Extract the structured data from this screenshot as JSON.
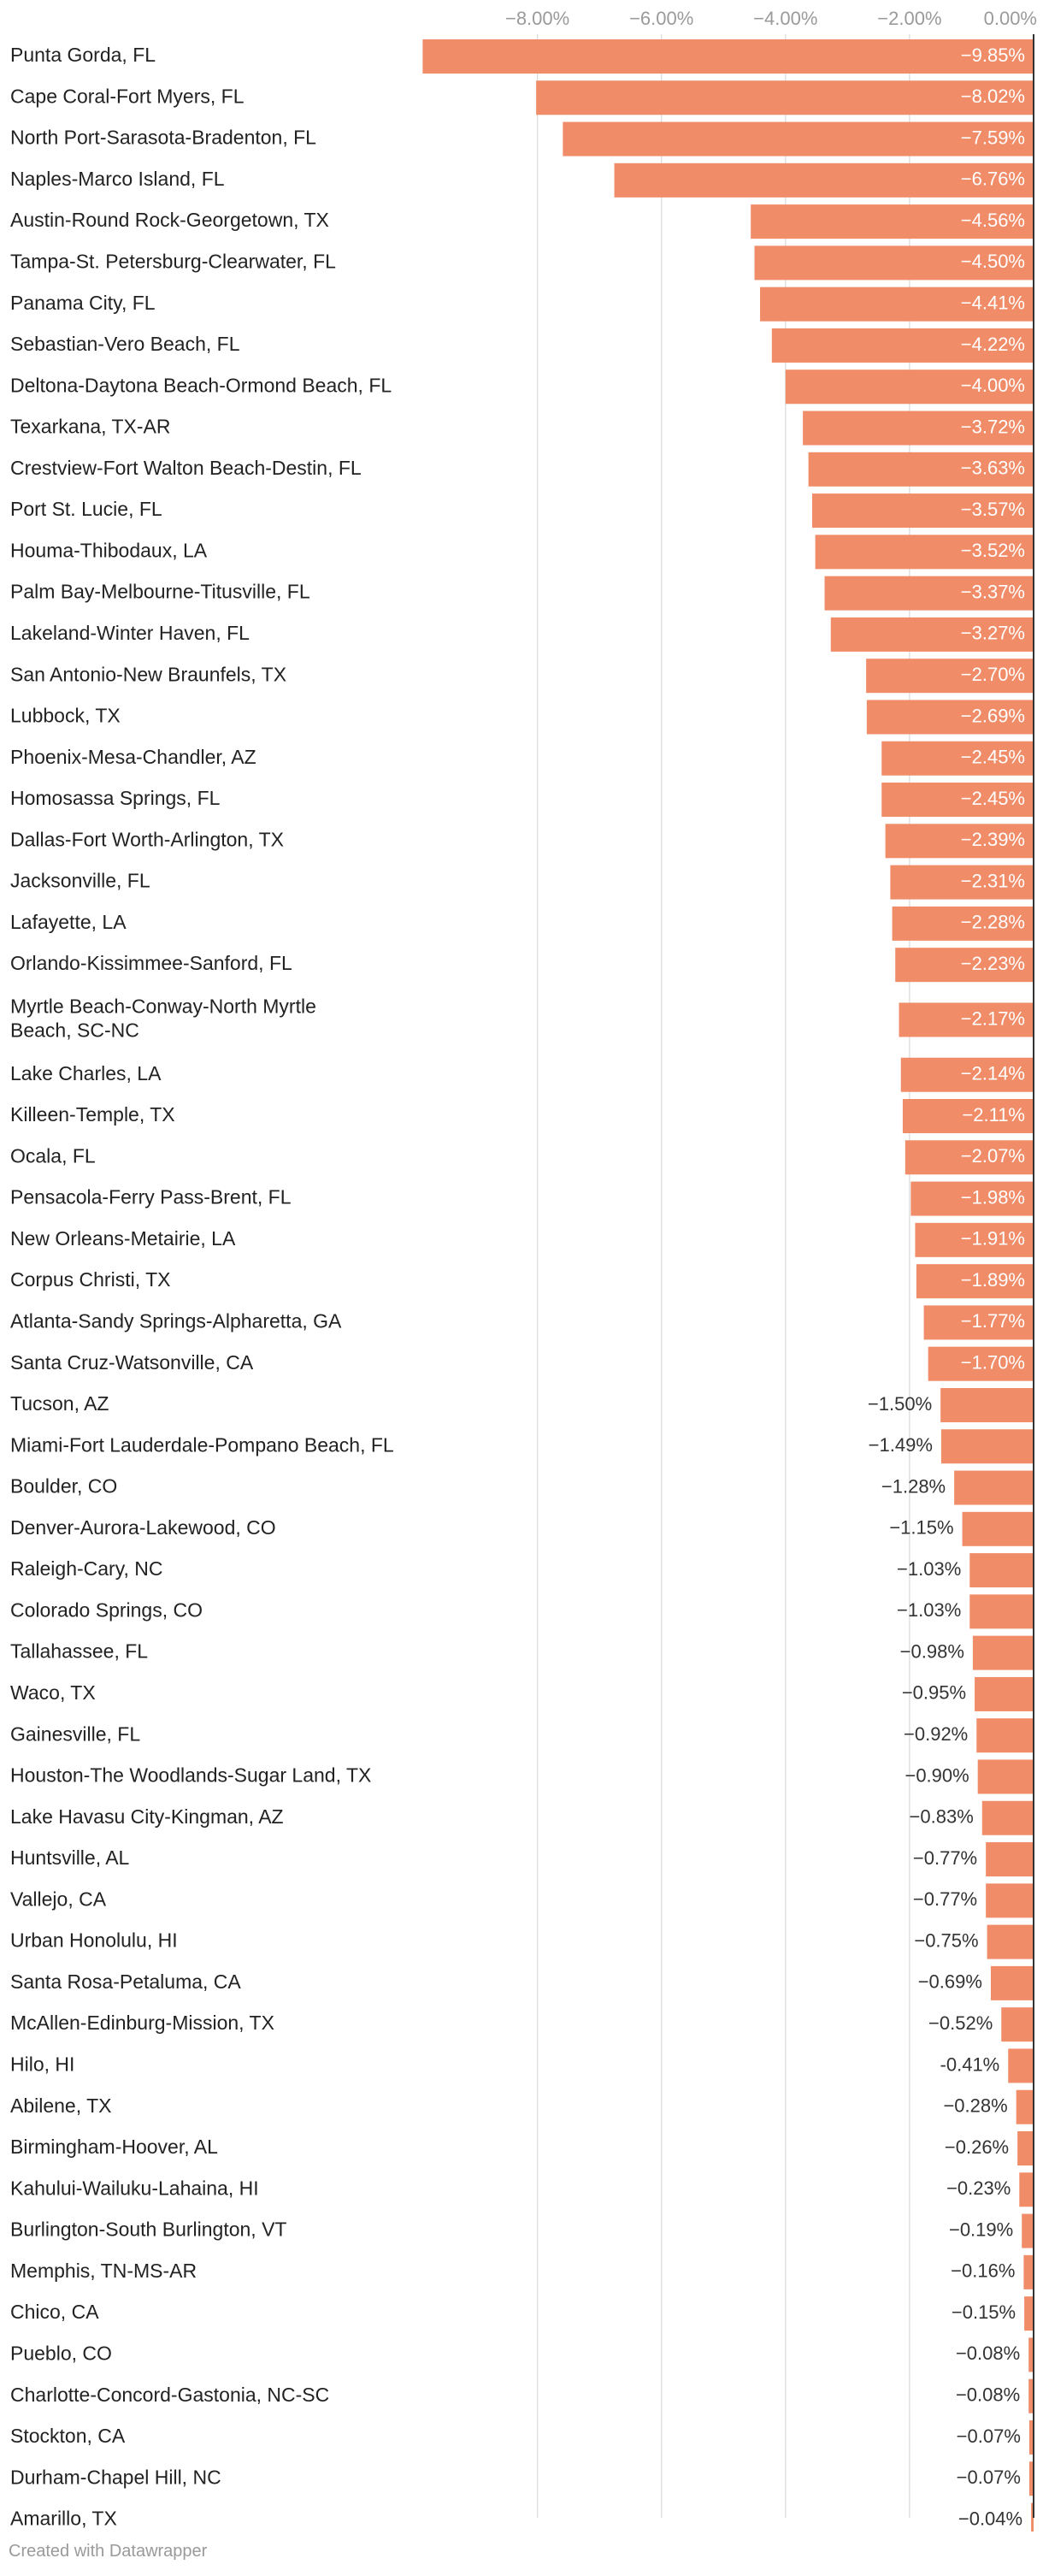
{
  "colors": {
    "bar": "#f08c68",
    "grid": "#dcdcdc",
    "baseline": "#333333",
    "label": "#222222",
    "tick": "#9a9a9a"
  },
  "chart_data": {
    "type": "bar",
    "orientation": "horizontal",
    "title": "",
    "xlabel": "",
    "ylabel": "",
    "xlim": [
      -10.0,
      0.0
    ],
    "ticks": [
      -8,
      -6,
      -4,
      -2,
      0
    ],
    "tick_labels": [
      "−8.00%",
      "−6.00%",
      "−4.00%",
      "−2.00%",
      "0.00%"
    ],
    "grid": true,
    "categories": [
      "Punta Gorda, FL",
      "Cape Coral-Fort Myers, FL",
      "North Port-Sarasota-Bradenton, FL",
      "Naples-Marco Island, FL",
      "Austin-Round Rock-Georgetown, TX",
      "Tampa-St. Petersburg-Clearwater, FL",
      "Panama City, FL",
      "Sebastian-Vero Beach, FL",
      "Deltona-Daytona Beach-Ormond Beach, FL",
      "Texarkana, TX-AR",
      "Crestview-Fort Walton Beach-Destin, FL",
      "Port St. Lucie, FL",
      "Houma-Thibodaux, LA",
      "Palm Bay-Melbourne-Titusville, FL",
      "Lakeland-Winter Haven, FL",
      "San Antonio-New Braunfels, TX",
      "Lubbock, TX",
      "Phoenix-Mesa-Chandler, AZ",
      "Homosassa Springs, FL",
      "Dallas-Fort Worth-Arlington, TX",
      "Jacksonville, FL",
      "Lafayette, LA",
      "Orlando-Kissimmee-Sanford, FL",
      "Myrtle Beach-Conway-North Myrtle Beach, SC-NC",
      "Lake Charles, LA",
      "Killeen-Temple, TX",
      "Ocala, FL",
      "Pensacola-Ferry Pass-Brent, FL",
      "New Orleans-Metairie, LA",
      "Corpus Christi, TX",
      "Atlanta-Sandy Springs-Alpharetta, GA",
      "Santa Cruz-Watsonville, CA",
      "Tucson, AZ",
      "Miami-Fort Lauderdale-Pompano Beach, FL",
      "Boulder, CO",
      "Denver-Aurora-Lakewood, CO",
      "Raleigh-Cary, NC",
      "Colorado Springs, CO",
      "Tallahassee, FL",
      "Waco, TX",
      "Gainesville, FL",
      "Houston-The Woodlands-Sugar Land, TX",
      "Lake Havasu City-Kingman, AZ",
      "Huntsville, AL",
      "Vallejo, CA",
      "Urban Honolulu, HI",
      "Santa Rosa-Petaluma, CA",
      "McAllen-Edinburg-Mission, TX",
      "Hilo, HI",
      "Abilene, TX",
      "Birmingham-Hoover, AL",
      "Kahului-Wailuku-Lahaina, HI",
      "Burlington-South Burlington, VT",
      "Memphis, TN-MS-AR",
      "Chico, CA",
      "Pueblo, CO",
      "Charlotte-Concord-Gastonia, NC-SC",
      "Stockton, CA",
      "Durham-Chapel Hill, NC",
      "Amarillo, TX"
    ],
    "values": [
      -9.85,
      -8.02,
      -7.59,
      -6.76,
      -4.56,
      -4.5,
      -4.41,
      -4.22,
      -4.0,
      -3.72,
      -3.63,
      -3.57,
      -3.52,
      -3.37,
      -3.27,
      -2.7,
      -2.69,
      -2.45,
      -2.45,
      -2.39,
      -2.31,
      -2.28,
      -2.23,
      -2.17,
      -2.14,
      -2.11,
      -2.07,
      -1.98,
      -1.91,
      -1.89,
      -1.77,
      -1.7,
      -1.5,
      -1.49,
      -1.28,
      -1.15,
      -1.03,
      -1.03,
      -0.98,
      -0.95,
      -0.92,
      -0.9,
      -0.83,
      -0.77,
      -0.77,
      -0.75,
      -0.69,
      -0.52,
      -0.41,
      -0.28,
      -0.26,
      -0.23,
      -0.19,
      -0.16,
      -0.15,
      -0.08,
      -0.08,
      -0.07,
      -0.07,
      -0.04
    ],
    "value_labels": [
      "−9.85%",
      "−8.02%",
      "−7.59%",
      "−6.76%",
      "−4.56%",
      "−4.50%",
      "−4.41%",
      "−4.22%",
      "−4.00%",
      "−3.72%",
      "−3.63%",
      "−3.57%",
      "−3.52%",
      "−3.37%",
      "−3.27%",
      "−2.70%",
      "−2.69%",
      "−2.45%",
      "−2.45%",
      "−2.39%",
      "−2.31%",
      "−2.28%",
      "−2.23%",
      "−2.17%",
      "−2.14%",
      "−2.11%",
      "−2.07%",
      "−1.98%",
      "−1.91%",
      "−1.89%",
      "−1.77%",
      "−1.70%",
      "−1.50%",
      "−1.49%",
      "−1.28%",
      "−1.15%",
      "−1.03%",
      "−1.03%",
      "−0.98%",
      "−0.95%",
      "−0.92%",
      "−0.90%",
      "−0.83%",
      "−0.77%",
      "−0.77%",
      "−0.75%",
      "−0.69%",
      "−0.52%",
      "-0.41%",
      "−0.28%",
      "−0.26%",
      "−0.23%",
      "−0.19%",
      "−0.16%",
      "−0.15%",
      "−0.08%",
      "−0.08%",
      "−0.07%",
      "−0.07%",
      "−0.04%"
    ]
  },
  "footer": {
    "credit": "Created with Datawrapper"
  }
}
